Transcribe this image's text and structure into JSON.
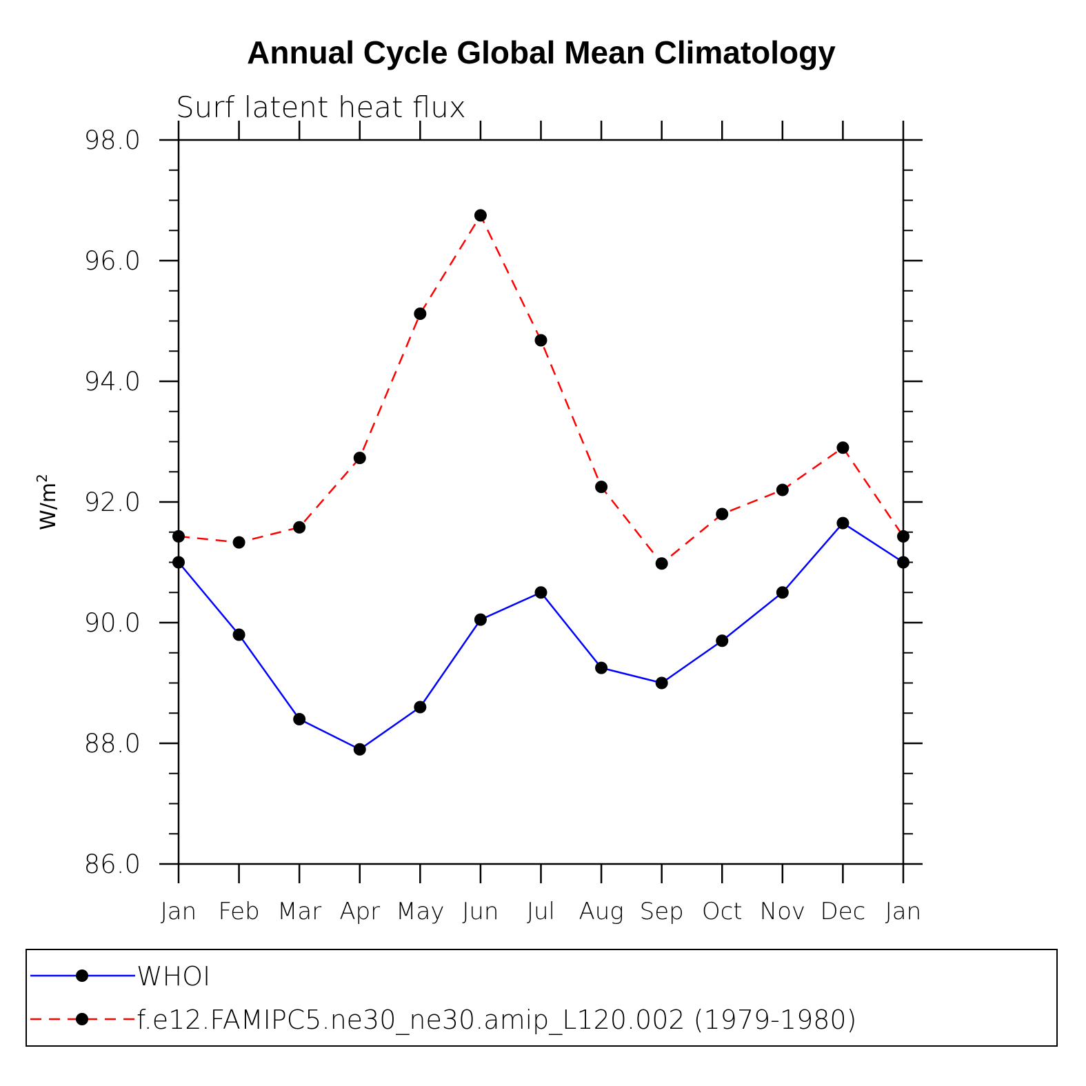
{
  "chart_data": {
    "type": "line",
    "title": "Annual Cycle Global Mean Climatology",
    "subtitle": "Surf latent heat flux",
    "xlabel": "",
    "ylabel": "W/m",
    "ylabel_superscript": "2",
    "categories": [
      "Jan",
      "Feb",
      "Mar",
      "Apr",
      "May",
      "Jun",
      "Jul",
      "Aug",
      "Sep",
      "Oct",
      "Nov",
      "Dec",
      "Jan"
    ],
    "ylim": [
      86.0,
      98.0
    ],
    "yticks": [
      "86.0",
      "88.0",
      "90.0",
      "92.0",
      "94.0",
      "96.0",
      "98.0"
    ],
    "series": [
      {
        "name": "WHOI",
        "color": "#0000ff",
        "line_style": "solid",
        "marker": "filled-circle",
        "values": [
          91.0,
          89.8,
          88.4,
          87.9,
          88.6,
          90.05,
          90.5,
          89.25,
          89.0,
          89.7,
          90.5,
          91.65,
          91.0
        ]
      },
      {
        "name": "f.e12.FAMIPC5.ne30_ne30.amip_L120.002 (1979-1980)",
        "color": "#ff0000",
        "line_style": "dashed",
        "marker": "filled-circle",
        "values": [
          91.43,
          91.33,
          91.58,
          92.73,
          95.12,
          96.75,
          94.68,
          92.25,
          90.98,
          91.8,
          92.2,
          92.9,
          91.43
        ]
      }
    ],
    "legend_position": "bottom"
  }
}
